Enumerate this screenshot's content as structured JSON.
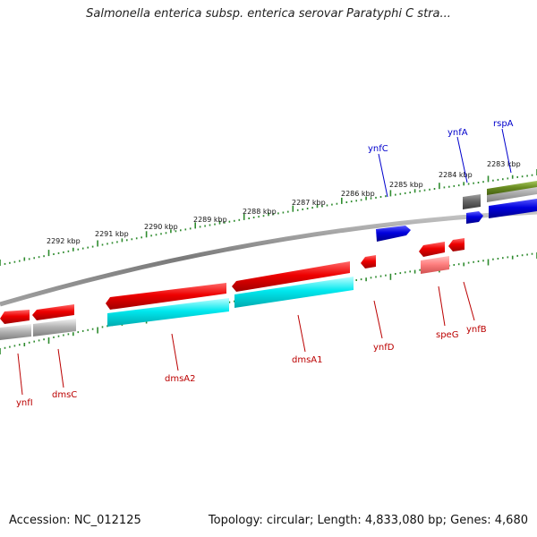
{
  "title": "Salmonella enterica subsp. enterica serovar Paratyphi C stra...",
  "footer": {
    "accession": "Accession: NC_012125",
    "summary": "Topology: circular; Length: 4,833,080 bp; Genes: 4,680"
  },
  "ruler_labels": [
    "2292 kbp",
    "2291 kbp",
    "2290 kbp",
    "2289 kbp",
    "2288 kbp",
    "2287 kbp",
    "2286 kbp",
    "2285 kbp",
    "2284 kbp",
    "2283 kbp"
  ],
  "genes_top": [
    "ynfC",
    "ynfA",
    "rspA"
  ],
  "genes_bottom": [
    "ynfI",
    "dmsC",
    "dmsA2",
    "dmsA1",
    "ynfD",
    "speG",
    "ynfB"
  ],
  "colors": {
    "backbone": "#8a8a8a",
    "ruler_ticks": "#2e8b2e",
    "forward_cds": "#0000dd",
    "reverse_cds": "#ee0000",
    "rna": "#ff8080",
    "aux_feature": "#00e0e8",
    "gray_feature": "#b5b5b5",
    "olive_feature": "#6b8e23",
    "top_label": "#0000cc",
    "bottom_label": "#bb0000"
  }
}
